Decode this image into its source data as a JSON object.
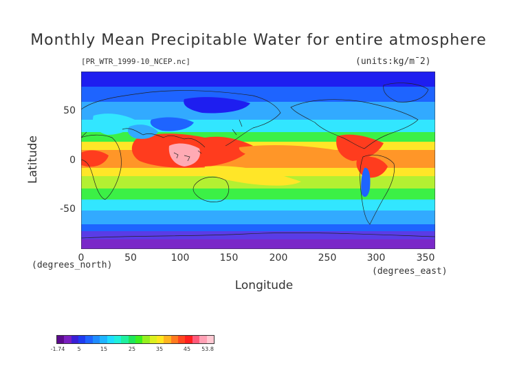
{
  "title": "Monthly Mean Precipitable Water for entire atmosphere",
  "file_label": "[PR_WTR_1999-10_NCEP.nc]",
  "units_label": "(units:kg/m¯2)",
  "x_axis": {
    "label": "Longitude",
    "unit_label": "(degrees_east)",
    "ticks": [
      "0",
      "50",
      "100",
      "150",
      "200",
      "250",
      "300",
      "350"
    ]
  },
  "y_axis": {
    "label": "Latitude",
    "unit_label": "(degrees_north)",
    "ticks": [
      "50",
      "0",
      "-50"
    ]
  },
  "colorbar": {
    "tick_labels": [
      "-1.74",
      "5",
      "15",
      "25",
      "35",
      "45",
      "53.8"
    ],
    "colors": [
      "#5b0a8c",
      "#7a1fc0",
      "#3a1fd6",
      "#1f3cf0",
      "#1f64ff",
      "#1f8cff",
      "#1fb4ff",
      "#1fdcff",
      "#1ff0dc",
      "#1ff0a0",
      "#1fe65a",
      "#3cf01f",
      "#96f01f",
      "#dcf01f",
      "#ffe61f",
      "#ffb41f",
      "#ff7a1f",
      "#ff461f",
      "#ff1f1f",
      "#ff5a7a",
      "#ffa0b4",
      "#ffc8d2"
    ]
  },
  "map_colors": {
    "purple": "#7a28c8",
    "violet": "#5a3ce6",
    "dark_blue": "#1e1ef0",
    "blue": "#1e64ff",
    "light_blue": "#32aaff",
    "cyan": "#32e6ff",
    "teal": "#32f0b4",
    "green": "#3cf046",
    "lime": "#b4f032",
    "yellow": "#ffe628",
    "orange": "#ff9628",
    "red": "#ff3c1e",
    "pink": "#ffaab4"
  }
}
